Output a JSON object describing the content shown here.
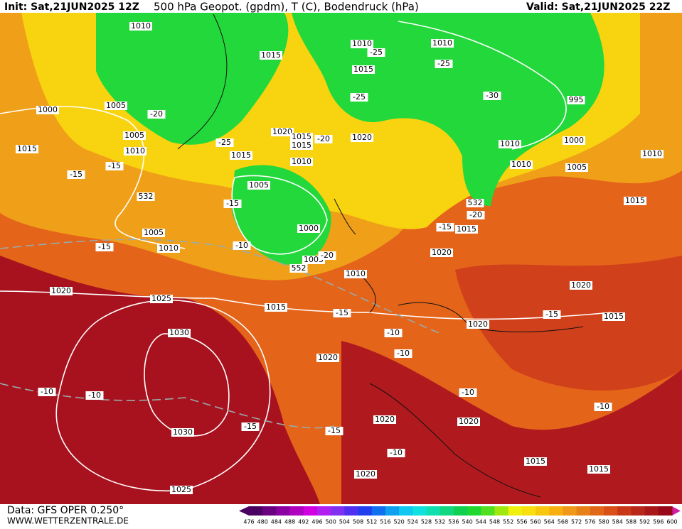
{
  "header": {
    "init": "Init: Sat,21JUN2025 12Z",
    "title": "500 hPa Geopot. (gpdm), T (C), Bodendruck (hPa)",
    "valid": "Valid: Sat,21JUN2025 22Z"
  },
  "footer": {
    "data": "Data: GFS OPER 0.250°",
    "site": "WWW.WETTERZENTRALE.DE"
  },
  "map": {
    "labels": [
      "1010",
      "1015",
      "1010",
      "-25",
      "1015",
      "1010",
      "-25",
      "-20",
      "1005",
      "1000",
      "1005",
      "1010",
      "1015",
      "-25",
      "1020",
      "1015",
      "-20",
      "1015",
      "1020",
      "-25",
      "-30",
      "995",
      "1010",
      "1000",
      "1010",
      "1005",
      "1010",
      "1015",
      "1010",
      "-15",
      "-15",
      "532",
      "1005",
      "-15",
      "1000",
      "1005",
      "-15",
      "1010",
      "-10",
      "1005",
      "-20",
      "552",
      "532",
      "-20",
      "-15",
      "1015",
      "1020",
      "1015",
      "1010",
      "1020",
      "1025",
      "1015",
      "-15",
      "1020",
      "-15",
      "1015",
      "1020",
      "1030",
      "-10",
      "-10",
      "1020",
      "-10",
      "-10",
      "-10",
      "-10",
      "-15",
      "-15",
      "1020",
      "1020",
      "1030",
      "-10",
      "1015",
      "1015",
      "1020",
      "1025"
    ]
  },
  "legend": {
    "ticks": [
      476,
      480,
      484,
      488,
      492,
      496,
      500,
      504,
      508,
      512,
      516,
      520,
      524,
      528,
      532,
      536,
      540,
      544,
      548,
      552,
      556,
      560,
      564,
      568,
      572,
      576,
      580,
      584,
      588,
      592,
      596,
      600
    ],
    "colors": [
      "#4a0060",
      "#6a0080",
      "#8a00a0",
      "#b000c0",
      "#d000e0",
      "#b020f0",
      "#8030f0",
      "#5030f0",
      "#2040f0",
      "#1070f0",
      "#10a0f0",
      "#10c8f0",
      "#10e0e0",
      "#10e0b0",
      "#10d880",
      "#10d050",
      "#20d830",
      "#50e020",
      "#a0e810",
      "#f0f010",
      "#f8e010",
      "#f8c810",
      "#f8b010",
      "#f09818",
      "#e88018",
      "#e06818",
      "#d85018",
      "#c83818",
      "#b82818",
      "#a81818",
      "#980818"
    ]
  }
}
